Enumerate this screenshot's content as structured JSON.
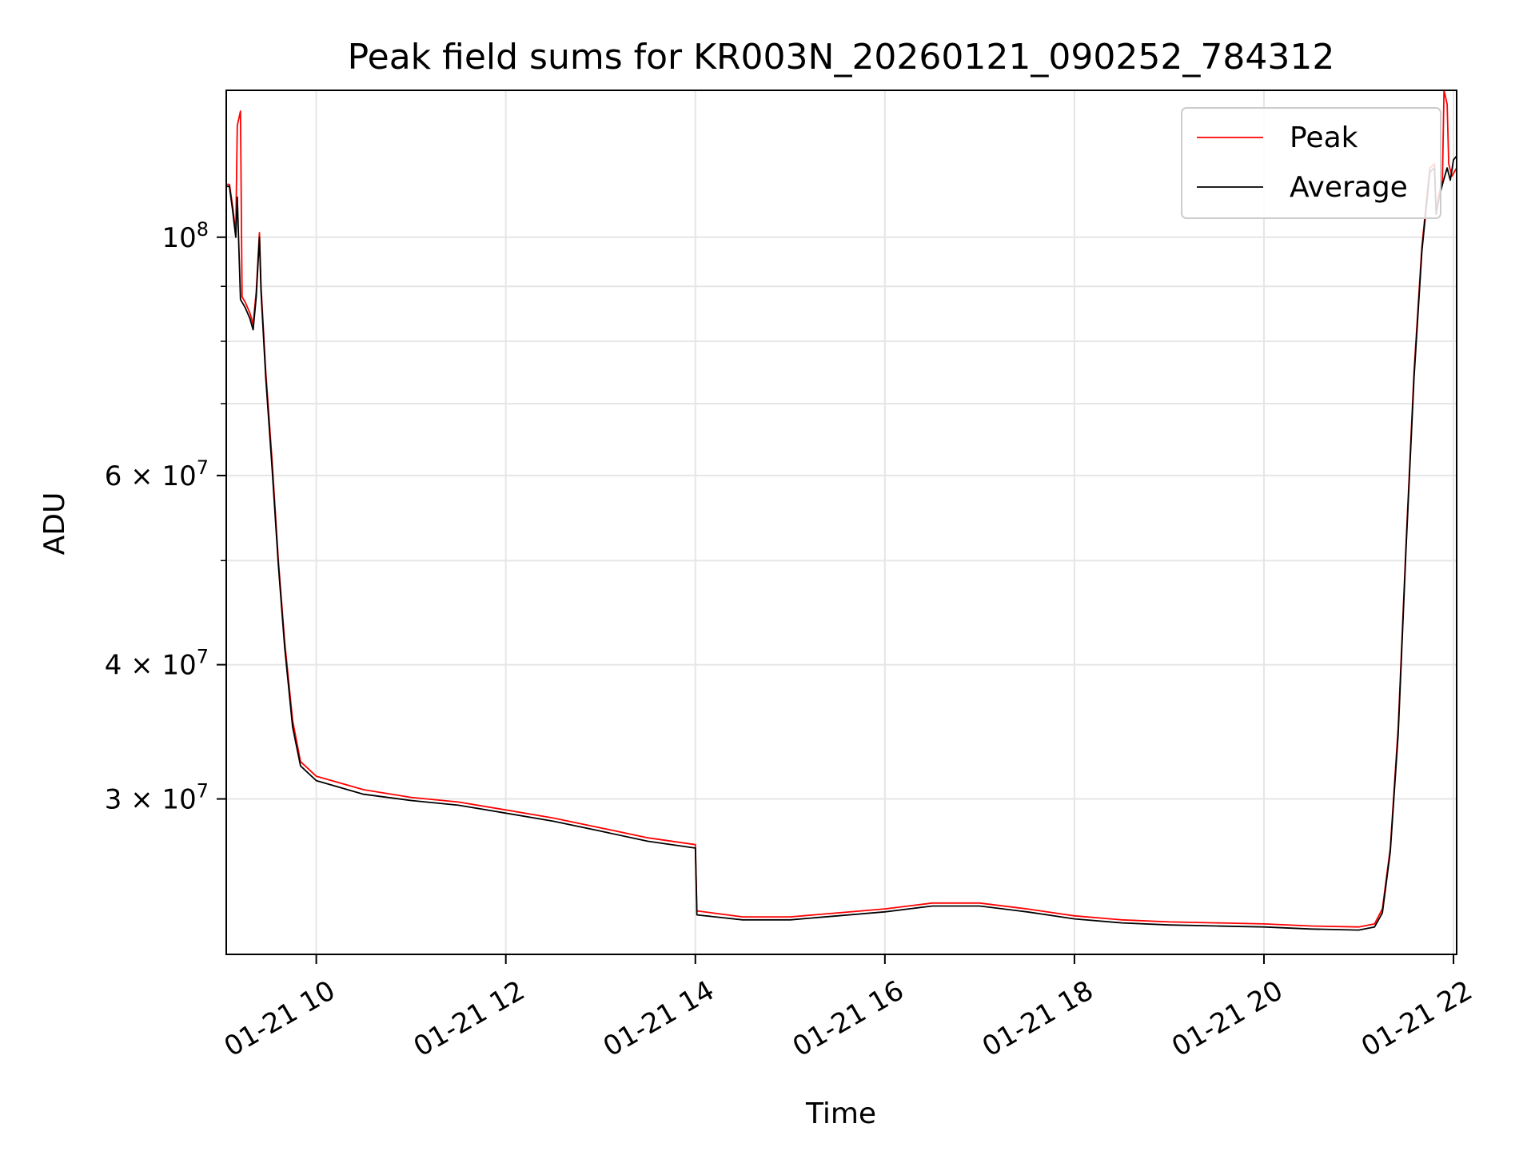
{
  "chart_data": {
    "type": "line",
    "title": "Peak field sums for KR003N_20260121_090252_784312",
    "xlabel": "Time",
    "ylabel": "ADU",
    "y_scale": "log",
    "ylim": [
      21500000,
      137000000
    ],
    "xlim": [
      "2026-01-21 09:03",
      "2026-01-21 22:02"
    ],
    "grid": true,
    "legend_position": "top-right",
    "x_ticks": [
      {
        "value": "2026-01-21 10:00",
        "label": "01-21 10"
      },
      {
        "value": "2026-01-21 12:00",
        "label": "01-21 12"
      },
      {
        "value": "2026-01-21 14:00",
        "label": "01-21 14"
      },
      {
        "value": "2026-01-21 16:00",
        "label": "01-21 16"
      },
      {
        "value": "2026-01-21 18:00",
        "label": "01-21 18"
      },
      {
        "value": "2026-01-21 20:00",
        "label": "01-21 20"
      },
      {
        "value": "2026-01-21 22:00",
        "label": "01-21 22"
      }
    ],
    "y_ticks": [
      {
        "value": 100000000,
        "label": "10",
        "exp": "8"
      },
      {
        "value": 60000000,
        "label": "6 × 10",
        "exp": "7"
      },
      {
        "value": 40000000,
        "label": "4 × 10",
        "exp": "7"
      },
      {
        "value": 30000000,
        "label": "3 × 10",
        "exp": "7"
      }
    ],
    "y_minor_ticks": [
      50000000,
      70000000,
      80000000,
      90000000
    ],
    "series": [
      {
        "name": "Peak",
        "color": "#ff0000",
        "points": [
          [
            "2026-01-21 09:03",
            112000000
          ],
          [
            "2026-01-21 09:05",
            112000000
          ],
          [
            "2026-01-21 09:07",
            107000000
          ],
          [
            "2026-01-21 09:09",
            101000000
          ],
          [
            "2026-01-21 09:10",
            127000000
          ],
          [
            "2026-01-21 09:12",
            131000000
          ],
          [
            "2026-01-21 09:13",
            88000000
          ],
          [
            "2026-01-21 09:15",
            87000000
          ],
          [
            "2026-01-21 09:18",
            85000000
          ],
          [
            "2026-01-21 09:20",
            83000000
          ],
          [
            "2026-01-21 09:22",
            89000000
          ],
          [
            "2026-01-21 09:24",
            101000000
          ],
          [
            "2026-01-21 09:25",
            90000000
          ],
          [
            "2026-01-21 09:28",
            75000000
          ],
          [
            "2026-01-21 09:32",
            62000000
          ],
          [
            "2026-01-21 09:36",
            50000000
          ],
          [
            "2026-01-21 09:40",
            42000000
          ],
          [
            "2026-01-21 09:45",
            35500000
          ],
          [
            "2026-01-21 09:50",
            32500000
          ],
          [
            "2026-01-21 10:00",
            31500000
          ],
          [
            "2026-01-21 10:30",
            30600000
          ],
          [
            "2026-01-21 11:00",
            30100000
          ],
          [
            "2026-01-21 11:30",
            29800000
          ],
          [
            "2026-01-21 12:00",
            29300000
          ],
          [
            "2026-01-21 12:30",
            28800000
          ],
          [
            "2026-01-21 13:00",
            28200000
          ],
          [
            "2026-01-21 13:30",
            27600000
          ],
          [
            "2026-01-21 14:00",
            27200000
          ],
          [
            "2026-01-21 14:01",
            23600000
          ],
          [
            "2026-01-21 14:30",
            23300000
          ],
          [
            "2026-01-21 15:00",
            23300000
          ],
          [
            "2026-01-21 15:30",
            23500000
          ],
          [
            "2026-01-21 16:00",
            23700000
          ],
          [
            "2026-01-21 16:30",
            24000000
          ],
          [
            "2026-01-21 17:00",
            24000000
          ],
          [
            "2026-01-21 17:30",
            23700000
          ],
          [
            "2026-01-21 18:00",
            23350000
          ],
          [
            "2026-01-21 18:30",
            23150000
          ],
          [
            "2026-01-21 19:00",
            23050000
          ],
          [
            "2026-01-21 19:30",
            23000000
          ],
          [
            "2026-01-21 20:00",
            22950000
          ],
          [
            "2026-01-21 20:30",
            22850000
          ],
          [
            "2026-01-21 21:00",
            22800000
          ],
          [
            "2026-01-21 21:10",
            22950000
          ],
          [
            "2026-01-21 21:15",
            23700000
          ],
          [
            "2026-01-21 21:20",
            27000000
          ],
          [
            "2026-01-21 21:25",
            35000000
          ],
          [
            "2026-01-21 21:30",
            52000000
          ],
          [
            "2026-01-21 21:35",
            75000000
          ],
          [
            "2026-01-21 21:40",
            98000000
          ],
          [
            "2026-01-21 21:45",
            116000000
          ],
          [
            "2026-01-21 21:48",
            117000000
          ],
          [
            "2026-01-21 21:49",
            106000000
          ],
          [
            "2026-01-21 21:51",
            110000000
          ],
          [
            "2026-01-21 21:53",
            113000000
          ],
          [
            "2026-01-21 21:54",
            137000000
          ],
          [
            "2026-01-21 21:56",
            133000000
          ],
          [
            "2026-01-21 21:57",
            117000000
          ],
          [
            "2026-01-21 21:59",
            114000000
          ],
          [
            "2026-01-21 22:02",
            116000000
          ]
        ]
      },
      {
        "name": "Average",
        "color": "#000000",
        "points": [
          [
            "2026-01-21 09:03",
            111500000
          ],
          [
            "2026-01-21 09:05",
            111500000
          ],
          [
            "2026-01-21 09:07",
            106000000
          ],
          [
            "2026-01-21 09:09",
            100000000
          ],
          [
            "2026-01-21 09:10",
            109000000
          ],
          [
            "2026-01-21 09:12",
            87500000
          ],
          [
            "2026-01-21 09:15",
            86000000
          ],
          [
            "2026-01-21 09:18",
            84000000
          ],
          [
            "2026-01-21 09:20",
            82000000
          ],
          [
            "2026-01-21 09:22",
            88000000
          ],
          [
            "2026-01-21 09:24",
            100000000
          ],
          [
            "2026-01-21 09:25",
            89000000
          ],
          [
            "2026-01-21 09:28",
            74000000
          ],
          [
            "2026-01-21 09:32",
            61000000
          ],
          [
            "2026-01-21 09:36",
            49500000
          ],
          [
            "2026-01-21 09:40",
            41500000
          ],
          [
            "2026-01-21 09:45",
            35000000
          ],
          [
            "2026-01-21 09:50",
            32200000
          ],
          [
            "2026-01-21 10:00",
            31200000
          ],
          [
            "2026-01-21 10:30",
            30300000
          ],
          [
            "2026-01-21 11:00",
            29900000
          ],
          [
            "2026-01-21 11:30",
            29600000
          ],
          [
            "2026-01-21 12:00",
            29100000
          ],
          [
            "2026-01-21 12:30",
            28600000
          ],
          [
            "2026-01-21 13:00",
            28000000
          ],
          [
            "2026-01-21 13:30",
            27400000
          ],
          [
            "2026-01-21 14:00",
            27000000
          ],
          [
            "2026-01-21 14:01",
            23400000
          ],
          [
            "2026-01-21 14:30",
            23150000
          ],
          [
            "2026-01-21 15:00",
            23150000
          ],
          [
            "2026-01-21 15:30",
            23350000
          ],
          [
            "2026-01-21 16:00",
            23550000
          ],
          [
            "2026-01-21 16:30",
            23850000
          ],
          [
            "2026-01-21 17:00",
            23850000
          ],
          [
            "2026-01-21 17:30",
            23550000
          ],
          [
            "2026-01-21 18:00",
            23200000
          ],
          [
            "2026-01-21 18:30",
            23000000
          ],
          [
            "2026-01-21 19:00",
            22900000
          ],
          [
            "2026-01-21 19:30",
            22850000
          ],
          [
            "2026-01-21 20:00",
            22800000
          ],
          [
            "2026-01-21 20:30",
            22700000
          ],
          [
            "2026-01-21 21:00",
            22650000
          ],
          [
            "2026-01-21 21:10",
            22800000
          ],
          [
            "2026-01-21 21:15",
            23500000
          ],
          [
            "2026-01-21 21:20",
            26800000
          ],
          [
            "2026-01-21 21:25",
            34500000
          ],
          [
            "2026-01-21 21:30",
            51500000
          ],
          [
            "2026-01-21 21:35",
            74000000
          ],
          [
            "2026-01-21 21:40",
            97000000
          ],
          [
            "2026-01-21 21:45",
            115000000
          ],
          [
            "2026-01-21 21:48",
            116000000
          ],
          [
            "2026-01-21 21:49",
            105000000
          ],
          [
            "2026-01-21 21:51",
            109000000
          ],
          [
            "2026-01-21 21:53",
            112000000
          ],
          [
            "2026-01-21 21:56",
            116000000
          ],
          [
            "2026-01-21 21:58",
            113000000
          ],
          [
            "2026-01-21 22:00",
            118000000
          ],
          [
            "2026-01-21 22:02",
            119000000
          ]
        ]
      }
    ]
  }
}
